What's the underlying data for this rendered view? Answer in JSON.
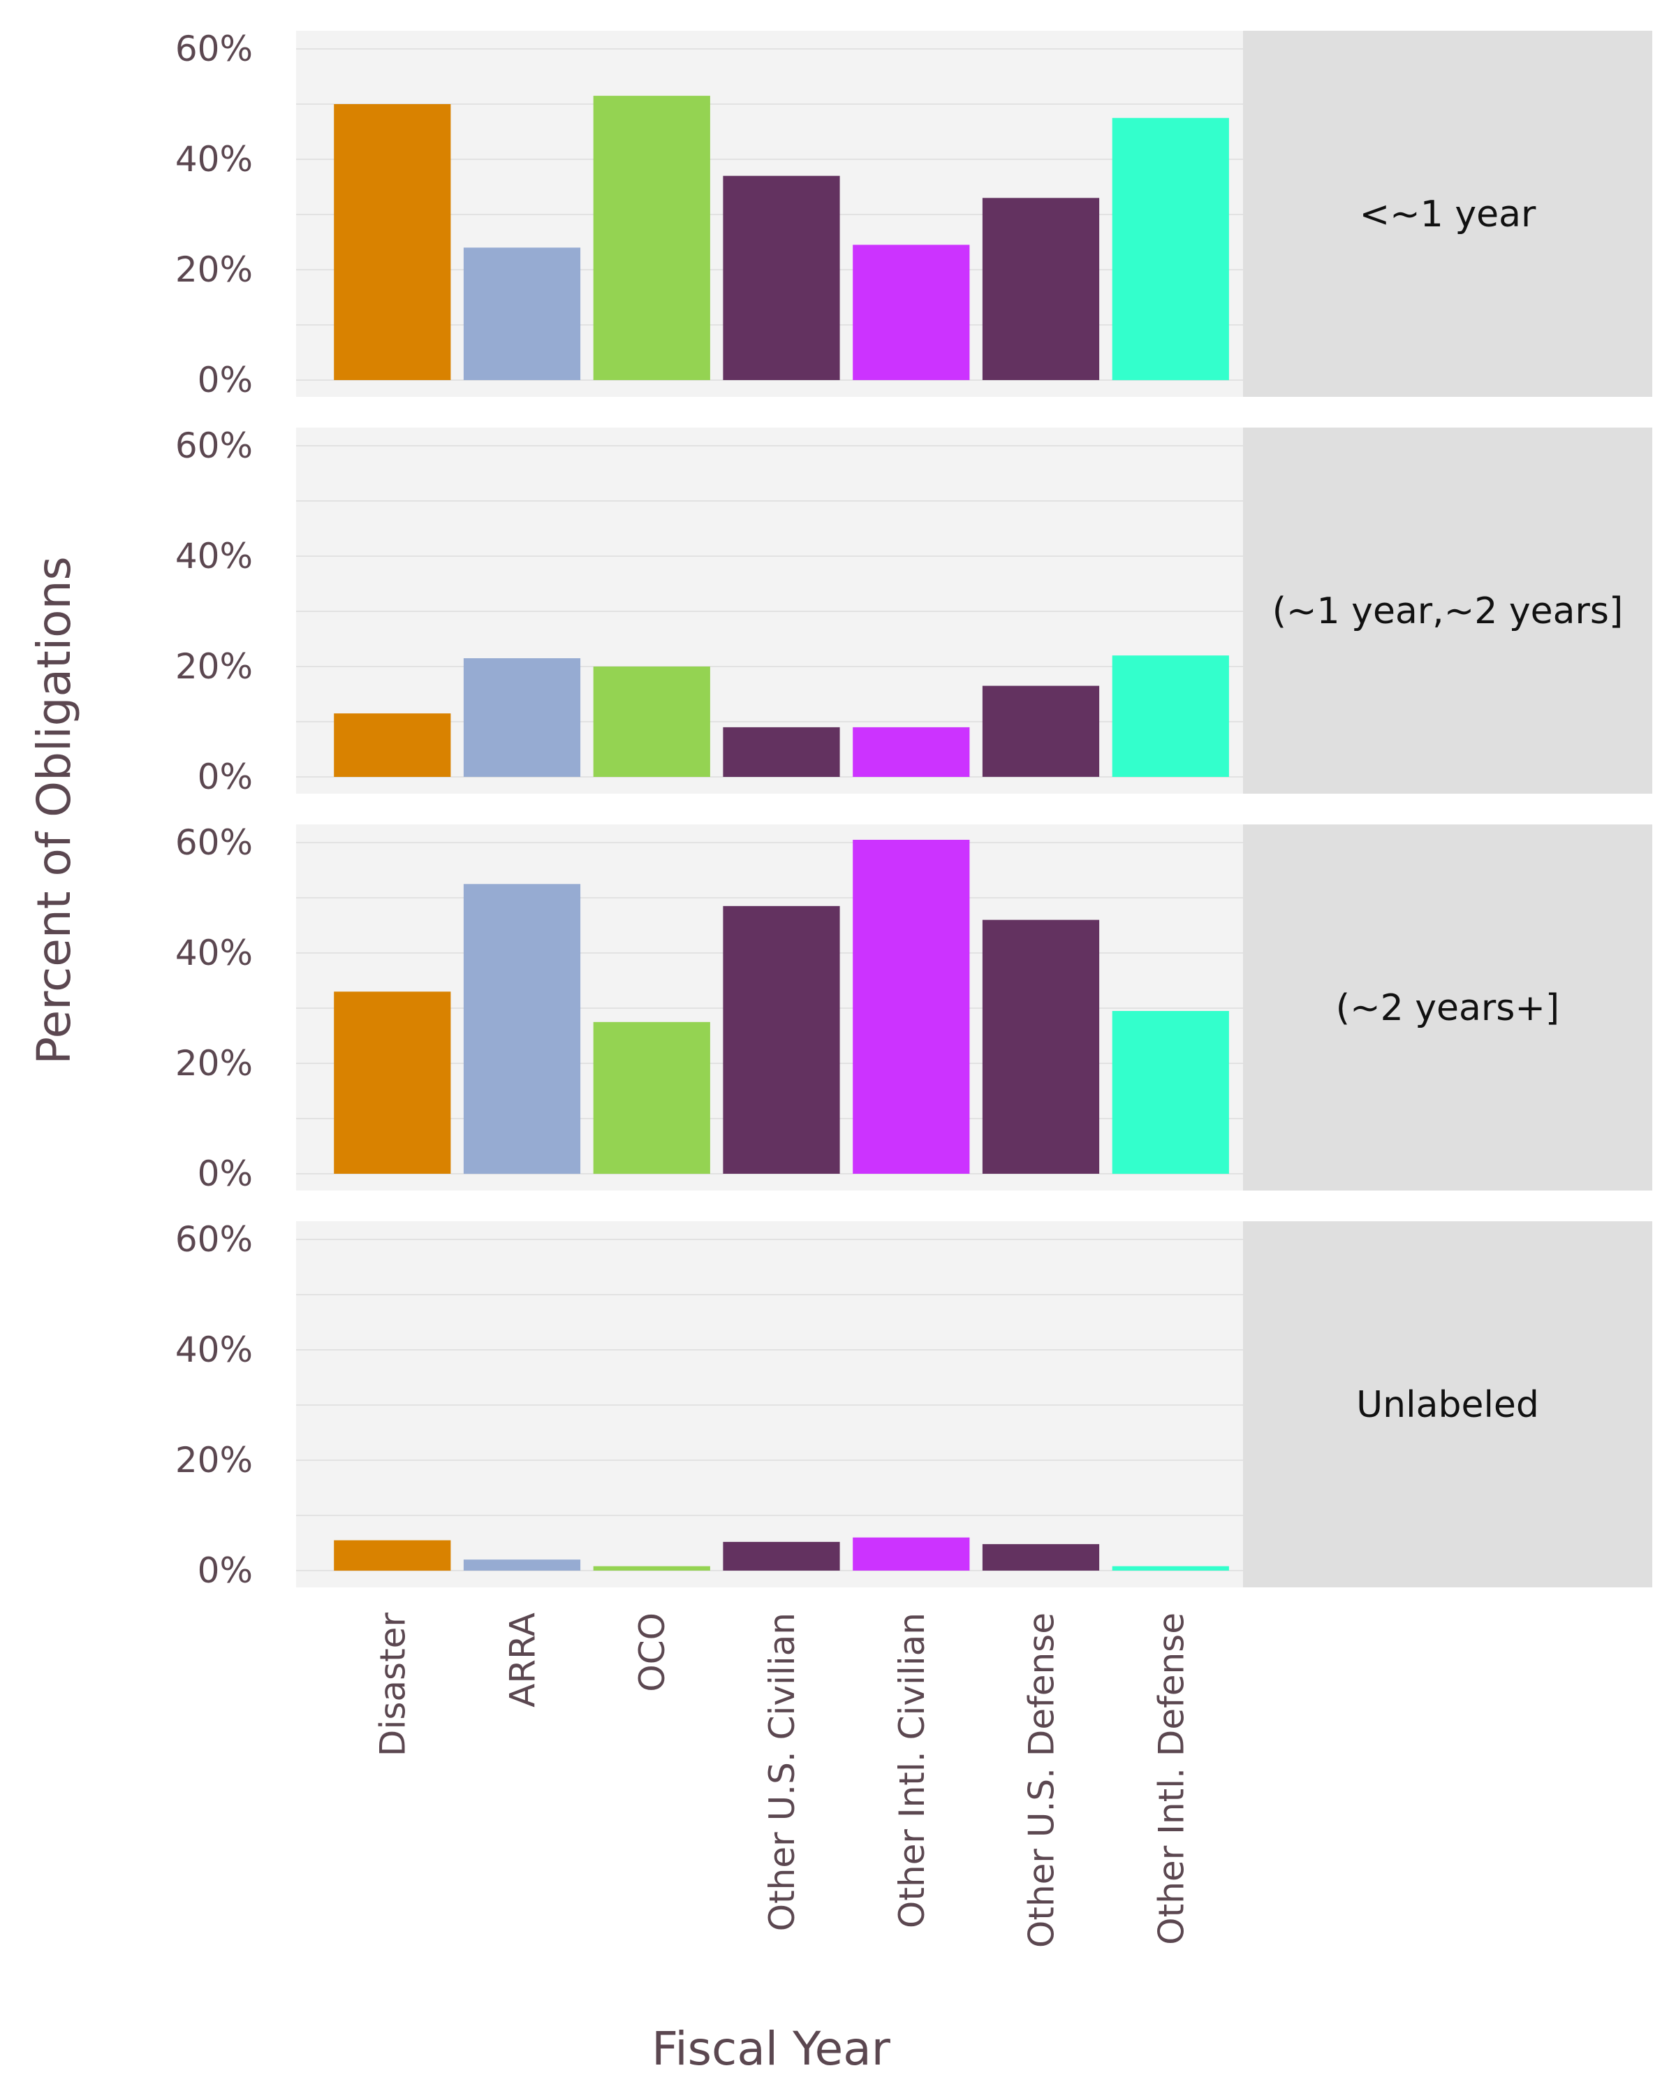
{
  "chart_data": {
    "type": "bar",
    "layout": "faceted",
    "ylabel": "Percent of Obligations",
    "xlabel": "Fiscal Year",
    "ylim": [
      0,
      65
    ],
    "yticks": [
      0,
      20,
      40,
      60
    ],
    "ytick_labels": [
      "0%",
      "20%",
      "40%",
      "60%"
    ],
    "grid": true,
    "categories": [
      "Disaster",
      "ARRA",
      "OCO",
      "Other U.S. Civilian",
      "Other Intl. Civilian",
      "Other U.S. Defense",
      "Other Intl. Defense"
    ],
    "colors": [
      "#d98200",
      "#96abd2",
      "#94d352",
      "#633260",
      "#cc33ff",
      "#633260",
      "#33ffcc"
    ],
    "panels": [
      {
        "label": "<~1 year",
        "values": [
          50,
          24,
          51.5,
          37,
          24.5,
          33,
          47.5
        ]
      },
      {
        "label": "(~1 year,~2 years]",
        "values": [
          11.5,
          21.5,
          20,
          9,
          9,
          16.5,
          22
        ]
      },
      {
        "label": "(~2 years+]",
        "values": [
          33,
          52.5,
          27.5,
          48.5,
          60.5,
          46,
          29.5
        ]
      },
      {
        "label": "Unlabeled",
        "values": [
          5.5,
          2,
          0.8,
          5.2,
          6,
          4.8,
          0.8
        ]
      }
    ]
  }
}
